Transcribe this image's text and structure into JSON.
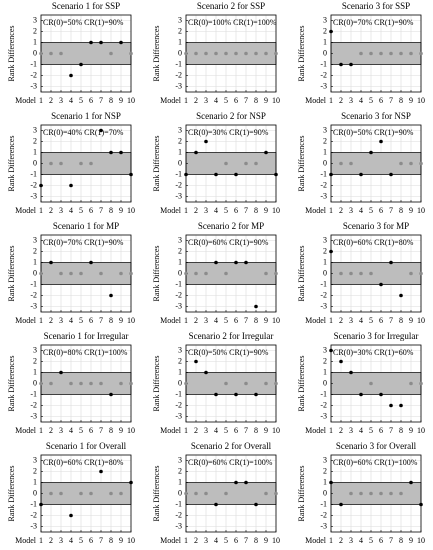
{
  "chart_data": [
    {
      "type": "scatter",
      "title": "Scenario 1 for SSP",
      "annotation": "CR(0)=50% CR(1)=90%",
      "xlabel": "Model",
      "ylabel": "Rank Differences",
      "x": [
        1,
        2,
        3,
        4,
        5,
        6,
        7,
        8,
        9,
        10
      ],
      "values": [
        0,
        0,
        0,
        -2,
        -1,
        1,
        1,
        0,
        1,
        0
      ],
      "xlim": [
        1,
        10
      ],
      "ylim": [
        -3.5,
        3.5
      ],
      "xticks": [
        1,
        2,
        3,
        4,
        5,
        6,
        7,
        8,
        9,
        10
      ],
      "yticks": [
        -3,
        -2,
        -1,
        0,
        1,
        2,
        3
      ],
      "band": [
        -1,
        1
      ],
      "band_color": "#bdbdbd",
      "color": "#000000",
      "inner_color": "#8c8c8c",
      "grid": true
    },
    {
      "type": "scatter",
      "title": "Scenario 2 for SSP",
      "annotation": "CR(0)=100% CR(1)=100%",
      "xlabel": "Model",
      "ylabel": "Rank Differences",
      "x": [
        1,
        2,
        3,
        4,
        5,
        6,
        7,
        8,
        9,
        10
      ],
      "values": [
        0,
        0,
        0,
        0,
        0,
        0,
        0,
        0,
        0,
        0
      ],
      "xlim": [
        1,
        10
      ],
      "ylim": [
        -3.5,
        3.5
      ],
      "xticks": [
        1,
        2,
        3,
        4,
        5,
        6,
        7,
        8,
        9,
        10
      ],
      "yticks": [
        -3,
        -2,
        -1,
        0,
        1,
        2,
        3
      ],
      "band": [
        -1,
        1
      ],
      "band_color": "#bdbdbd",
      "color": "#000000",
      "inner_color": "#8c8c8c",
      "grid": true
    },
    {
      "type": "scatter",
      "title": "Scenario 3 for SSP",
      "annotation": "CR(0)=70% CR(1)=90%",
      "xlabel": "Model",
      "ylabel": "Rank Differences",
      "x": [
        1,
        2,
        3,
        4,
        5,
        6,
        7,
        8,
        9,
        10
      ],
      "values": [
        2,
        -1,
        -1,
        0,
        0,
        0,
        0,
        0,
        0,
        0
      ],
      "xlim": [
        1,
        10
      ],
      "ylim": [
        -3.5,
        3.5
      ],
      "xticks": [
        1,
        2,
        3,
        4,
        5,
        6,
        7,
        8,
        9,
        10
      ],
      "yticks": [
        -3,
        -2,
        -1,
        0,
        1,
        2,
        3
      ],
      "band": [
        -1,
        1
      ],
      "band_color": "#bdbdbd",
      "color": "#000000",
      "inner_color": "#8c8c8c",
      "grid": true
    },
    {
      "type": "scatter",
      "title": "Scenario 1 for NSP",
      "annotation": "CR(0)=40% CR(1)=70%",
      "xlabel": "Model",
      "ylabel": "Rank Differences",
      "x": [
        1,
        2,
        3,
        4,
        5,
        6,
        7,
        8,
        9,
        10
      ],
      "values": [
        -2,
        0,
        0,
        -2,
        0,
        0,
        3,
        1,
        1,
        -1
      ],
      "xlim": [
        1,
        10
      ],
      "ylim": [
        -3.5,
        3.5
      ],
      "xticks": [
        1,
        2,
        3,
        4,
        5,
        6,
        7,
        8,
        9,
        10
      ],
      "yticks": [
        -3,
        -2,
        -1,
        0,
        1,
        2,
        3
      ],
      "band": [
        -1,
        1
      ],
      "band_color": "#bdbdbd",
      "color": "#000000",
      "inner_color": "#8c8c8c",
      "grid": true
    },
    {
      "type": "scatter",
      "title": "Scenario 2 for NSP",
      "annotation": "CR(0)=30% CR(1)=90%",
      "xlabel": "Model",
      "ylabel": "Rank Differences",
      "x": [
        1,
        2,
        3,
        4,
        5,
        6,
        7,
        8,
        9,
        10
      ],
      "values": [
        -1,
        1,
        2,
        -1,
        0,
        -1,
        0,
        0,
        1,
        -1
      ],
      "xlim": [
        1,
        10
      ],
      "ylim": [
        -3.5,
        3.5
      ],
      "xticks": [
        1,
        2,
        3,
        4,
        5,
        6,
        7,
        8,
        9,
        10
      ],
      "yticks": [
        -3,
        -2,
        -1,
        0,
        1,
        2,
        3
      ],
      "band": [
        -1,
        1
      ],
      "band_color": "#bdbdbd",
      "color": "#000000",
      "inner_color": "#8c8c8c",
      "grid": true
    },
    {
      "type": "scatter",
      "title": "Scenario 3 for NSP",
      "annotation": "CR(0)=50% CR(1)=90%",
      "xlabel": "Model",
      "ylabel": "Rank Differences",
      "x": [
        1,
        2,
        3,
        4,
        5,
        6,
        7,
        8,
        9,
        10
      ],
      "values": [
        -1,
        0,
        0,
        -1,
        1,
        2,
        -1,
        0,
        0,
        0
      ],
      "xlim": [
        1,
        10
      ],
      "ylim": [
        -3.5,
        3.5
      ],
      "xticks": [
        1,
        2,
        3,
        4,
        5,
        6,
        7,
        8,
        9,
        10
      ],
      "yticks": [
        -3,
        -2,
        -1,
        0,
        1,
        2,
        3
      ],
      "band": [
        -1,
        1
      ],
      "band_color": "#bdbdbd",
      "color": "#000000",
      "inner_color": "#8c8c8c",
      "grid": true
    },
    {
      "type": "scatter",
      "title": "Scenario 1 for MP",
      "annotation": "CR(0)=70% CR(1)=90%",
      "xlabel": "Model",
      "ylabel": "Rank Differences",
      "x": [
        1,
        2,
        3,
        4,
        5,
        6,
        7,
        8,
        9,
        10
      ],
      "values": [
        0,
        1,
        0,
        0,
        0,
        1,
        0,
        -2,
        0,
        0
      ],
      "xlim": [
        1,
        10
      ],
      "ylim": [
        -3.5,
        3.5
      ],
      "xticks": [
        1,
        2,
        3,
        4,
        5,
        6,
        7,
        8,
        9,
        10
      ],
      "yticks": [
        -3,
        -2,
        -1,
        0,
        1,
        2,
        3
      ],
      "band": [
        -1,
        1
      ],
      "band_color": "#bdbdbd",
      "color": "#000000",
      "inner_color": "#8c8c8c",
      "grid": true
    },
    {
      "type": "scatter",
      "title": "Scenario 2 for MP",
      "annotation": "CR(0)=60% CR(1)=90%",
      "xlabel": "Model",
      "ylabel": "Rank Differences",
      "x": [
        1,
        2,
        3,
        4,
        5,
        6,
        7,
        8,
        9,
        10
      ],
      "values": [
        0,
        0,
        0,
        1,
        0,
        1,
        1,
        -3,
        0,
        0
      ],
      "xlim": [
        1,
        10
      ],
      "ylim": [
        -3.5,
        3.5
      ],
      "xticks": [
        1,
        2,
        3,
        4,
        5,
        6,
        7,
        8,
        9,
        10
      ],
      "yticks": [
        -3,
        -2,
        -1,
        0,
        1,
        2,
        3
      ],
      "band": [
        -1,
        1
      ],
      "band_color": "#bdbdbd",
      "color": "#000000",
      "inner_color": "#8c8c8c",
      "grid": true
    },
    {
      "type": "scatter",
      "title": "Scenario 3 for MP",
      "annotation": "CR(0)=60% CR(1)=80%",
      "xlabel": "Model",
      "ylabel": "Rank Differences",
      "x": [
        1,
        2,
        3,
        4,
        5,
        6,
        7,
        8,
        9,
        10
      ],
      "values": [
        2,
        0,
        0,
        0,
        0,
        -1,
        1,
        -2,
        0,
        0
      ],
      "xlim": [
        1,
        10
      ],
      "ylim": [
        -3.5,
        3.5
      ],
      "xticks": [
        1,
        2,
        3,
        4,
        5,
        6,
        7,
        8,
        9,
        10
      ],
      "yticks": [
        -3,
        -2,
        -1,
        0,
        1,
        2,
        3
      ],
      "band": [
        -1,
        1
      ],
      "band_color": "#bdbdbd",
      "color": "#000000",
      "inner_color": "#8c8c8c",
      "grid": true
    },
    {
      "type": "scatter",
      "title": "Scenario 1 for Irregular",
      "annotation": "CR(0)=80% CR(1)=100%",
      "xlabel": "Model",
      "ylabel": "Rank Differences",
      "x": [
        1,
        2,
        3,
        4,
        5,
        6,
        7,
        8,
        9,
        10
      ],
      "values": [
        0,
        0,
        1,
        0,
        0,
        0,
        0,
        -1,
        0,
        0
      ],
      "xlim": [
        1,
        10
      ],
      "ylim": [
        -3.5,
        3.5
      ],
      "xticks": [
        1,
        2,
        3,
        4,
        5,
        6,
        7,
        8,
        9,
        10
      ],
      "yticks": [
        -3,
        -2,
        -1,
        0,
        1,
        2,
        3
      ],
      "band": [
        -1,
        1
      ],
      "band_color": "#bdbdbd",
      "color": "#000000",
      "inner_color": "#8c8c8c",
      "grid": true
    },
    {
      "type": "scatter",
      "title": "Scenario 2 for Irregular",
      "annotation": "CR(0)=50% CR(1)=90%",
      "xlabel": "Model",
      "ylabel": "Rank Differences",
      "x": [
        1,
        2,
        3,
        4,
        5,
        6,
        7,
        8,
        9,
        10
      ],
      "values": [
        0,
        2,
        1,
        -1,
        0,
        -1,
        0,
        -1,
        0,
        0
      ],
      "xlim": [
        1,
        10
      ],
      "ylim": [
        -3.5,
        3.5
      ],
      "xticks": [
        1,
        2,
        3,
        4,
        5,
        6,
        7,
        8,
        9,
        10
      ],
      "yticks": [
        -3,
        -2,
        -1,
        0,
        1,
        2,
        3
      ],
      "band": [
        -1,
        1
      ],
      "band_color": "#bdbdbd",
      "color": "#000000",
      "inner_color": "#8c8c8c",
      "grid": true
    },
    {
      "type": "scatter",
      "title": "Scenario 3 for Irregular",
      "annotation": "CR(0)=30% CR(1)=60%",
      "xlabel": "Model",
      "ylabel": "Rank Differences",
      "x": [
        1,
        2,
        3,
        4,
        5,
        6,
        7,
        8,
        9,
        10
      ],
      "values": [
        3,
        2,
        1,
        -1,
        0,
        -1,
        -2,
        -2,
        0,
        0
      ],
      "xlim": [
        1,
        10
      ],
      "ylim": [
        -3.5,
        3.5
      ],
      "xticks": [
        1,
        2,
        3,
        4,
        5,
        6,
        7,
        8,
        9,
        10
      ],
      "yticks": [
        -3,
        -2,
        -1,
        0,
        1,
        2,
        3
      ],
      "band": [
        -1,
        1
      ],
      "band_color": "#bdbdbd",
      "color": "#000000",
      "inner_color": "#8c8c8c",
      "grid": true
    },
    {
      "type": "scatter",
      "title": "Scenario 1 for Overall",
      "annotation": "CR(0)=60% CR(1)=80%",
      "xlabel": "Model",
      "ylabel": "Rank Differences",
      "x": [
        1,
        2,
        3,
        4,
        5,
        6,
        7,
        8,
        9,
        10
      ],
      "values": [
        -1,
        0,
        0,
        -2,
        0,
        0,
        2,
        0,
        0,
        1
      ],
      "xlim": [
        1,
        10
      ],
      "ylim": [
        -3.5,
        3.5
      ],
      "xticks": [
        1,
        2,
        3,
        4,
        5,
        6,
        7,
        8,
        9,
        10
      ],
      "yticks": [
        -3,
        -2,
        -1,
        0,
        1,
        2,
        3
      ],
      "band": [
        -1,
        1
      ],
      "band_color": "#bdbdbd",
      "color": "#000000",
      "inner_color": "#8c8c8c",
      "grid": true
    },
    {
      "type": "scatter",
      "title": "Scenario 2 for Overall",
      "annotation": "CR(0)=60% CR(1)=100%",
      "xlabel": "Model",
      "ylabel": "Rank Differences",
      "x": [
        1,
        2,
        3,
        4,
        5,
        6,
        7,
        8,
        9,
        10
      ],
      "values": [
        0,
        0,
        0,
        -1,
        0,
        1,
        1,
        -1,
        0,
        0
      ],
      "xlim": [
        1,
        10
      ],
      "ylim": [
        -3.5,
        3.5
      ],
      "xticks": [
        1,
        2,
        3,
        4,
        5,
        6,
        7,
        8,
        9,
        10
      ],
      "yticks": [
        -3,
        -2,
        -1,
        0,
        1,
        2,
        3
      ],
      "band": [
        -1,
        1
      ],
      "band_color": "#bdbdbd",
      "color": "#000000",
      "inner_color": "#8c8c8c",
      "grid": true
    },
    {
      "type": "scatter",
      "title": "Scenario 3 for Overall",
      "annotation": "CR(0)=60% CR(1)=100%",
      "xlabel": "Model",
      "ylabel": "Rank Differences",
      "x": [
        1,
        2,
        3,
        4,
        5,
        6,
        7,
        8,
        9,
        10
      ],
      "values": [
        1,
        -1,
        0,
        0,
        0,
        0,
        0,
        0,
        1,
        -1
      ],
      "xlim": [
        1,
        10
      ],
      "ylim": [
        -3.5,
        3.5
      ],
      "xticks": [
        1,
        2,
        3,
        4,
        5,
        6,
        7,
        8,
        9,
        10
      ],
      "yticks": [
        -3,
        -2,
        -1,
        0,
        1,
        2,
        3
      ],
      "band": [
        -1,
        1
      ],
      "band_color": "#bdbdbd",
      "color": "#000000",
      "inner_color": "#8c8c8c",
      "grid": true
    }
  ]
}
